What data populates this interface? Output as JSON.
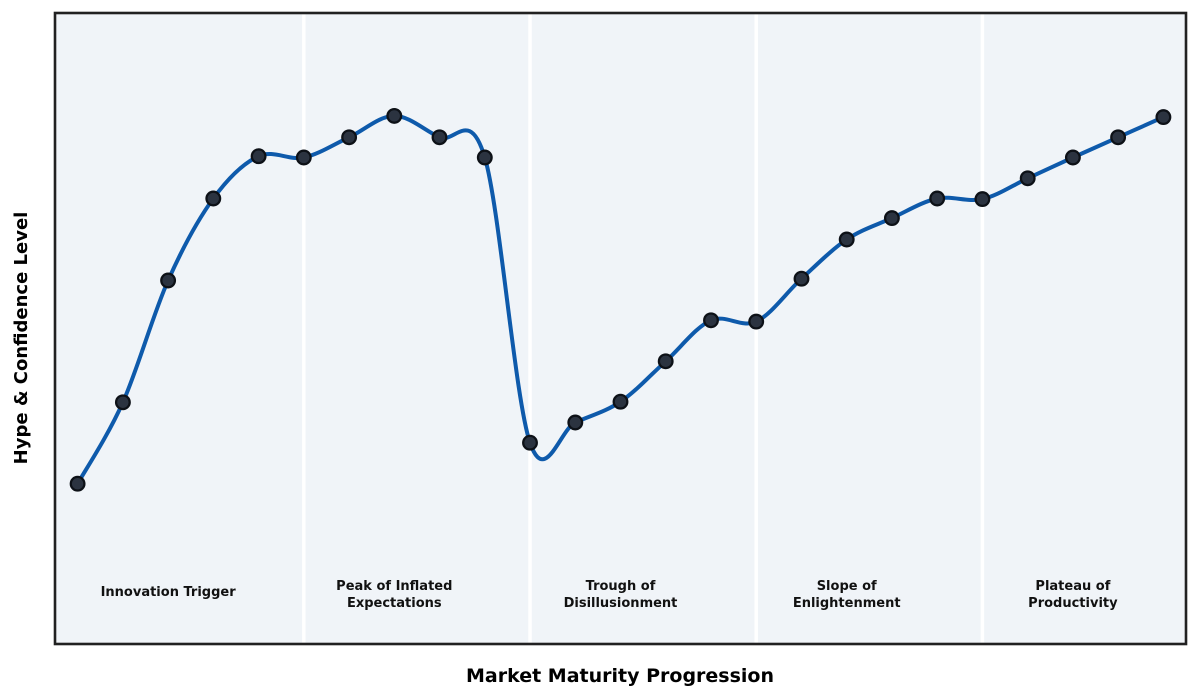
{
  "chart_data": {
    "type": "line",
    "title": "",
    "xlabel": "Market Maturity Progression",
    "ylabel": "Hype & Confidence Level",
    "x": [
      0,
      1,
      2,
      3,
      4,
      5,
      6,
      7,
      8,
      9,
      10,
      11,
      12,
      13,
      14,
      15,
      16,
      17,
      18,
      19,
      20,
      21,
      22,
      23,
      24
    ],
    "values": [
      25.4,
      38.3,
      57.6,
      70.6,
      77.3,
      77.1,
      80.3,
      83.7,
      80.3,
      77.1,
      31.9,
      35.1,
      38.4,
      44.8,
      51.3,
      51.1,
      57.9,
      64.1,
      67.5,
      70.6,
      70.5,
      73.8,
      77.1,
      80.3,
      83.5
    ],
    "xlim": [
      -0.5,
      24.5
    ],
    "ylim": [
      0,
      100
    ],
    "grid": false,
    "legend": "none",
    "ticks": "none",
    "line_color": "#0e5aab",
    "marker_color": "#2b3340",
    "marker_edge_color": "#0d1117",
    "plot_bg": "#f0f4f8",
    "divider_color": "#ffffff",
    "spine_color": "#212121",
    "phase_dividers": [
      5,
      10,
      15,
      20
    ],
    "phases": [
      {
        "line1": "Innovation Trigger",
        "line2": "",
        "center_x": 2
      },
      {
        "line1": "Peak of Inflated",
        "line2": "Expectations",
        "center_x": 7
      },
      {
        "line1": "Trough of",
        "line2": "Disillusionment",
        "center_x": 12
      },
      {
        "line1": "Slope of",
        "line2": "Enlightenment",
        "center_x": 17
      },
      {
        "line1": "Plateau of",
        "line2": "Productivity",
        "center_x": 22
      }
    ]
  }
}
